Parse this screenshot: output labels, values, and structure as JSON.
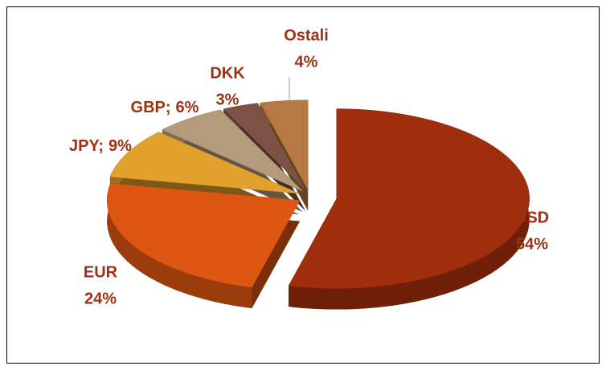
{
  "chart_data": {
    "type": "pie",
    "categories": [
      "USD",
      "EUR",
      "JPY;",
      "GBP;",
      "DKK",
      "Ostali"
    ],
    "values": [
      54,
      24,
      9,
      6,
      3,
      4
    ],
    "value_labels": [
      "54%",
      "24%",
      "9%",
      "6%",
      "3%",
      "4%"
    ],
    "colors": [
      "#a02d0c",
      "#dd5612",
      "#e2a02c",
      "#b39b7c",
      "#7b5243",
      "#b67942"
    ]
  }
}
